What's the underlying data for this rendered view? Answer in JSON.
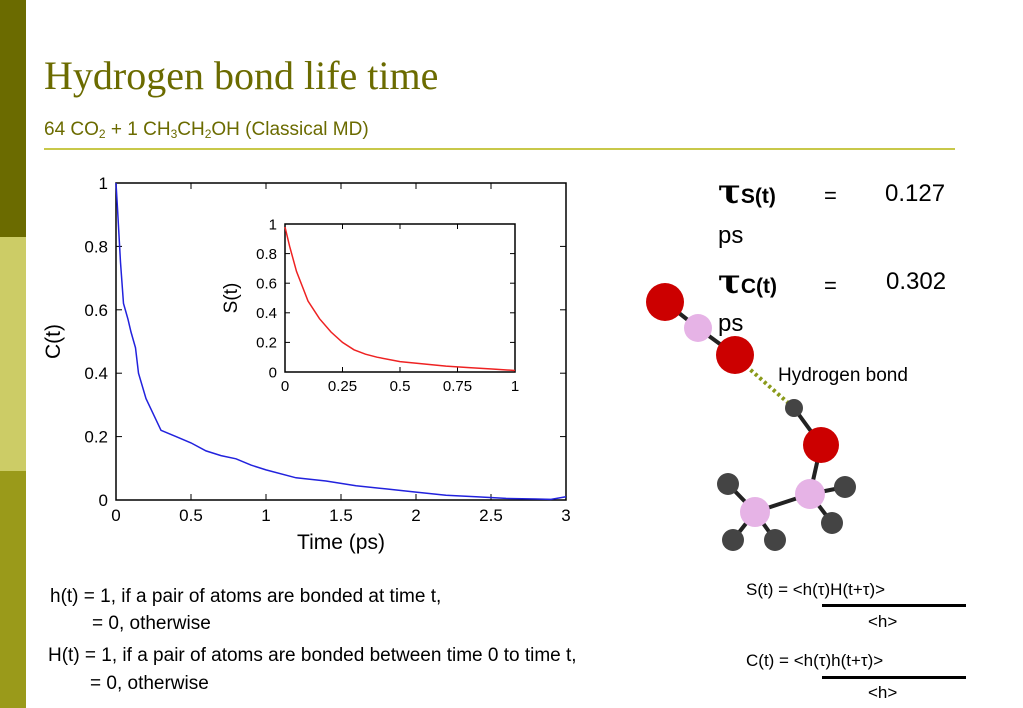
{
  "slide": {
    "title": "Hydrogen bond life time",
    "subtitle": {
      "parts": [
        "64 CO",
        "2",
        " + 1 CH",
        "3",
        "CH",
        "2",
        "OH  (Classical MD)"
      ]
    },
    "colors": {
      "accent": "#6b6b00",
      "rule": "#c8c84a",
      "bar_dark": "#6b6b00",
      "bar_light": "#cccc66",
      "bar_mid": "#9a9a1a"
    }
  },
  "tau": {
    "symbol": "τ",
    "s": {
      "sub": "S(t)",
      "eq": "=",
      "value": "0.127",
      "unit": "ps"
    },
    "c": {
      "sub": "C(t)",
      "eq": "=",
      "value": "0.302",
      "unit": "ps"
    }
  },
  "molecule": {
    "hbond_label": "Hydrogen bond",
    "colors": {
      "oxygen": "#cc0000",
      "carbon": "#e6b3e6",
      "hydrogen": "#444444",
      "hbond": "#8a9a1a"
    }
  },
  "definitions": {
    "h_line1": "h(t) = 1, if a pair of atoms are bonded at time t,",
    "h_line2": "= 0, otherwise",
    "H_line1": "H(t) = 1, if a pair of atoms are bonded between time 0 to time  t,",
    "H_line2": "= 0, otherwise"
  },
  "formulas": {
    "s_num": "S(t) = <h(τ)H(t+τ)>",
    "s_den": "<h>",
    "c_num": "C(t) = <h(τ)h(t+τ)>",
    "c_den": "<h>"
  },
  "chart_data": [
    {
      "type": "line",
      "xlabel": "Time (ps)",
      "ylabel": "C(t)",
      "xlim": [
        0,
        3
      ],
      "ylim": [
        0,
        1
      ],
      "xticks": [
        "0",
        "0.5",
        "1",
        "1.5",
        "2",
        "2.5",
        "3"
      ],
      "yticks": [
        "0",
        "0.2",
        "0.4",
        "0.6",
        "0.8",
        "1"
      ],
      "series": [
        {
          "color": "#2222dd",
          "x": [
            0,
            0.01,
            0.03,
            0.05,
            0.08,
            0.1,
            0.13,
            0.15,
            0.2,
            0.25,
            0.3,
            0.35,
            0.4,
            0.5,
            0.6,
            0.7,
            0.8,
            0.9,
            1.0,
            1.2,
            1.4,
            1.6,
            1.8,
            2.0,
            2.2,
            2.4,
            2.6,
            2.8,
            2.9,
            3.0
          ],
          "y": [
            1.0,
            0.92,
            0.75,
            0.62,
            0.57,
            0.53,
            0.48,
            0.4,
            0.32,
            0.27,
            0.22,
            0.21,
            0.2,
            0.18,
            0.155,
            0.14,
            0.13,
            0.11,
            0.095,
            0.07,
            0.06,
            0.045,
            0.035,
            0.025,
            0.015,
            0.01,
            0.005,
            0.003,
            0.002,
            0.01
          ]
        }
      ]
    },
    {
      "type": "line",
      "xlabel": "",
      "ylabel": "S(t)",
      "xlim": [
        0,
        1
      ],
      "ylim": [
        0,
        1
      ],
      "xticks": [
        "0",
        "0.25",
        "0.5",
        "0.75",
        "1"
      ],
      "yticks": [
        "0",
        "0.2",
        "0.4",
        "0.6",
        "0.8",
        "1"
      ],
      "series": [
        {
          "color": "#ee2222",
          "x": [
            0,
            0.02,
            0.05,
            0.08,
            0.1,
            0.15,
            0.2,
            0.25,
            0.3,
            0.35,
            0.4,
            0.5,
            0.6,
            0.7,
            0.8,
            0.9,
            1.0
          ],
          "y": [
            0.98,
            0.85,
            0.68,
            0.56,
            0.48,
            0.36,
            0.27,
            0.2,
            0.15,
            0.12,
            0.1,
            0.07,
            0.055,
            0.04,
            0.03,
            0.02,
            0.01
          ]
        }
      ]
    }
  ]
}
